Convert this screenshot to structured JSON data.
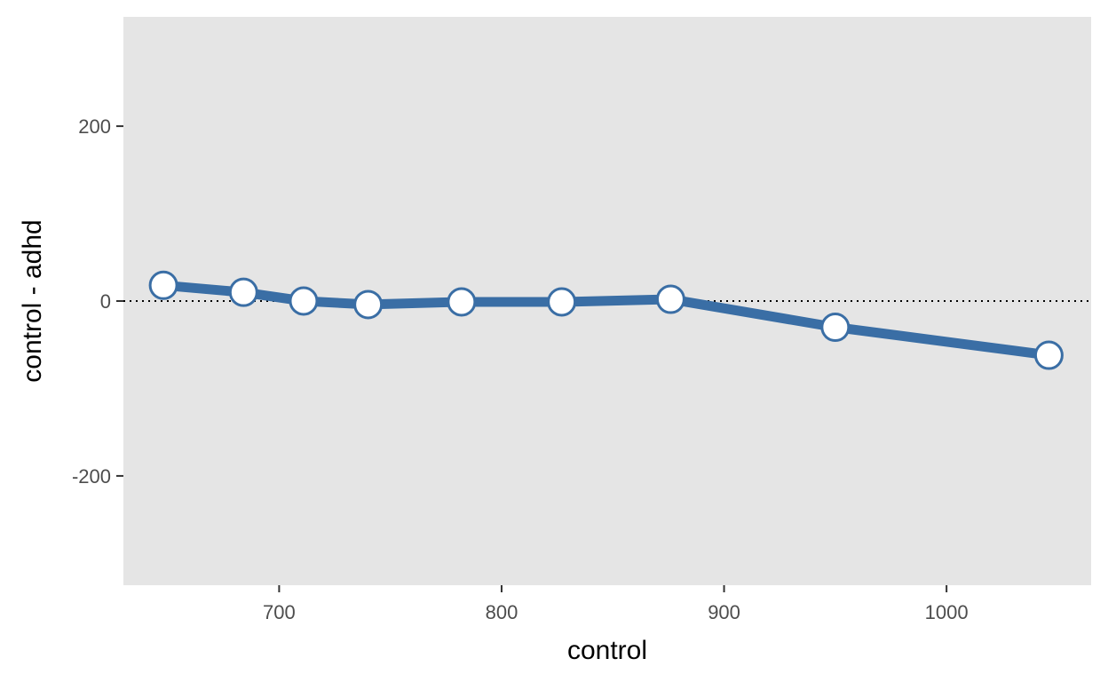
{
  "chart_data": {
    "type": "line",
    "title": "",
    "xlabel": "control",
    "ylabel": "control - adhd",
    "x": [
      648,
      684,
      711,
      740,
      782,
      827,
      876,
      950,
      1046
    ],
    "series": [
      {
        "values": [
          18,
          10,
          0,
          -4,
          -1,
          -1,
          2,
          -30,
          -62
        ]
      }
    ],
    "xlim": [
      630,
      1065
    ],
    "ylim": [
      -325,
      325
    ],
    "xticks": [
      700,
      800,
      900,
      1000
    ],
    "yticks": [
      -200,
      0,
      200
    ],
    "reference_line": 0,
    "grid": false,
    "legend": "none",
    "colors": {
      "panel": "#e5e5e5",
      "line": "#3a6ea5",
      "marker_fill": "#ffffff",
      "marker_edge": "#3a6ea5",
      "reference_line": "#000000",
      "tick": "#333333"
    }
  }
}
